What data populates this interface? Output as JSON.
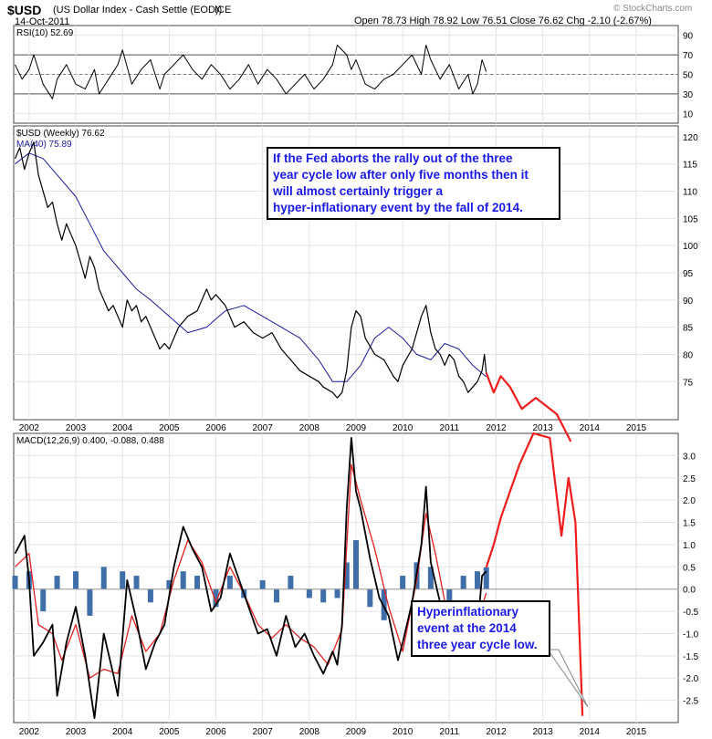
{
  "header": {
    "symbol": "$USD",
    "name": "(US Dollar Index - Cash Settle (EOD))",
    "exchange": "ICE",
    "date": "14-Oct-2011",
    "ohlc_label": "Open 78.73  High 78.92  Low 76.51  Close 76.62  Chg -2.10 (-2.67%)",
    "watermark": "© StockCharts.com",
    "colors": {
      "down": "#cc0000",
      "price_line": "#1a1a9e"
    }
  },
  "annotations": {
    "top": [
      "If the Fed aborts the rally out of the three",
      "year cycle low after only five months then it",
      "will almost certainly trigger a",
      "hyper-inflationary event by the fall of 2014."
    ],
    "bottom": [
      "Hyperinflationary",
      "event at the 2014",
      "three year cycle low."
    ]
  },
  "chart_data": [
    {
      "type": "line",
      "panel": "RSI",
      "legend": "RSI(10) 52.69",
      "ylim": [
        0,
        100
      ],
      "y_ticks": [
        10,
        30,
        50,
        70,
        90
      ],
      "reference_lines": [
        30,
        70
      ],
      "last_value": 52.69,
      "color": "#000000",
      "series": [
        {
          "x": [
            2001.7,
            2001.85,
            2002.0,
            2002.1,
            2002.3,
            2002.5,
            2002.6,
            2002.8,
            2003.0,
            2003.2,
            2003.4,
            2003.5,
            2003.7,
            2003.9,
            2004.0,
            2004.2,
            2004.4,
            2004.6,
            2004.8,
            2004.9,
            2005.1,
            2005.3,
            2005.5,
            2005.7,
            2005.9,
            2006.1,
            2006.3,
            2006.5,
            2006.7,
            2006.9,
            2007.1,
            2007.3,
            2007.5,
            2007.7,
            2007.9,
            2008.1,
            2008.3,
            2008.5,
            2008.6,
            2008.8,
            2008.9,
            2009.0,
            2009.2,
            2009.4,
            2009.6,
            2009.8,
            2010.0,
            2010.2,
            2010.4,
            2010.5,
            2010.6,
            2010.8,
            2011.0,
            2011.2,
            2011.4,
            2011.5,
            2011.6,
            2011.7,
            2011.79
          ],
          "values": [
            60,
            45,
            55,
            70,
            40,
            25,
            45,
            60,
            40,
            35,
            55,
            30,
            45,
            60,
            75,
            40,
            55,
            65,
            35,
            50,
            60,
            70,
            55,
            45,
            60,
            50,
            35,
            45,
            60,
            40,
            55,
            45,
            30,
            40,
            50,
            35,
            45,
            60,
            80,
            70,
            55,
            65,
            40,
            35,
            45,
            50,
            60,
            70,
            50,
            80,
            65,
            45,
            60,
            35,
            50,
            30,
            40,
            65,
            52.69
          ]
        }
      ]
    },
    {
      "type": "line",
      "panel": "Price",
      "legend": "$USD (Weekly) 76.62",
      "ma_legend": "MA(40) 75.89",
      "ylim": [
        68,
        122
      ],
      "y_ticks": [
        75,
        80,
        85,
        90,
        95,
        100,
        105,
        110,
        115,
        120
      ],
      "x_tick_labels": [
        "2002",
        "2003",
        "2004",
        "2005",
        "2006",
        "2007",
        "2008",
        "2009",
        "2010",
        "2011",
        "2012",
        "2013",
        "2014",
        "2015"
      ],
      "series": [
        {
          "name": "$USD (Weekly)",
          "x": [
            2001.7,
            2001.8,
            2001.9,
            2002.0,
            2002.1,
            2002.2,
            2002.3,
            2002.4,
            2002.5,
            2002.6,
            2002.7,
            2002.8,
            2002.9,
            2003.0,
            2003.1,
            2003.2,
            2003.3,
            2003.4,
            2003.5,
            2003.6,
            2003.7,
            2003.8,
            2003.9,
            2004.0,
            2004.1,
            2004.2,
            2004.3,
            2004.4,
            2004.5,
            2004.6,
            2004.7,
            2004.8,
            2004.9,
            2005.0,
            2005.2,
            2005.4,
            2005.6,
            2005.8,
            2005.9,
            2006.0,
            2006.2,
            2006.3,
            2006.4,
            2006.6,
            2006.8,
            2007.0,
            2007.2,
            2007.4,
            2007.6,
            2007.8,
            2008.0,
            2008.2,
            2008.3,
            2008.5,
            2008.6,
            2008.7,
            2008.8,
            2008.9,
            2009.0,
            2009.1,
            2009.2,
            2009.4,
            2009.6,
            2009.8,
            2009.9,
            2010.0,
            2010.2,
            2010.3,
            2010.4,
            2010.5,
            2010.6,
            2010.7,
            2010.8,
            2010.9,
            2011.0,
            2011.1,
            2011.2,
            2011.3,
            2011.4,
            2011.5,
            2011.6,
            2011.7,
            2011.75,
            2011.79
          ],
          "values": [
            116,
            118,
            114,
            117,
            119,
            113,
            110,
            107,
            108,
            104,
            101,
            104,
            102,
            100,
            97,
            94,
            98,
            96,
            92,
            90,
            88,
            89,
            87,
            85,
            90,
            88,
            89,
            86,
            87,
            85,
            83,
            81,
            82,
            81,
            85,
            87,
            88,
            92,
            90,
            91,
            89,
            87,
            85,
            86,
            84,
            83,
            84,
            81,
            79,
            77,
            76,
            75,
            74,
            73,
            72,
            73,
            77,
            85,
            88,
            87,
            83,
            80,
            79,
            76,
            75,
            78,
            81,
            84,
            87,
            89,
            84,
            81,
            80,
            78,
            80,
            79,
            76,
            75,
            73,
            74,
            75,
            77,
            80,
            76.62
          ]
        },
        {
          "name": "MA(40)",
          "x": [
            2001.7,
            2002.0,
            2002.3,
            2002.6,
            2003.0,
            2003.3,
            2003.6,
            2004.0,
            2004.3,
            2004.6,
            2005.0,
            2005.4,
            2005.8,
            2006.2,
            2006.6,
            2007.0,
            2007.4,
            2007.8,
            2008.2,
            2008.5,
            2008.8,
            2009.1,
            2009.4,
            2009.7,
            2010.0,
            2010.3,
            2010.6,
            2010.9,
            2011.2,
            2011.5,
            2011.79
          ],
          "values": [
            115,
            117,
            116,
            113,
            109,
            104,
            99,
            95,
            92,
            90,
            87,
            84,
            85,
            88,
            89,
            87,
            85,
            83,
            79,
            75,
            75,
            78,
            83,
            85,
            83,
            80,
            79,
            82,
            81,
            78,
            75.89
          ]
        },
        {
          "name": "projection",
          "x": [
            2011.79,
            2011.95,
            2012.1,
            2012.3,
            2012.55,
            2012.85,
            2013.3,
            2013.6
          ],
          "values": [
            76.62,
            73,
            76,
            74,
            70,
            72,
            69,
            64
          ]
        }
      ]
    },
    {
      "type": "line",
      "panel": "MACD",
      "legend": "MACD(12,26,9) 0.400, -0.088, 0.488",
      "legend_values": [
        0.4,
        -0.088,
        0.488
      ],
      "ylim": [
        -3.0,
        3.5
      ],
      "y_ticks": [
        -2.5,
        -2.0,
        -1.5,
        -1.0,
        -0.5,
        0.0,
        0.5,
        1.0,
        1.5,
        2.0,
        2.5,
        3.0
      ],
      "x_tick_labels": [
        "2002",
        "2003",
        "2004",
        "2005",
        "2006",
        "2007",
        "2008",
        "2009",
        "2010",
        "2011",
        "2012",
        "2013",
        "2014",
        "2015"
      ],
      "series": [
        {
          "name": "MACD",
          "x": [
            2001.7,
            2001.9,
            2002.0,
            2002.1,
            2002.3,
            2002.5,
            2002.6,
            2002.8,
            2003.0,
            2003.2,
            2003.4,
            2003.6,
            2003.8,
            2003.9,
            2004.1,
            2004.3,
            2004.5,
            2004.7,
            2004.9,
            2005.1,
            2005.3,
            2005.5,
            2005.7,
            2005.9,
            2006.1,
            2006.3,
            2006.5,
            2006.7,
            2006.9,
            2007.1,
            2007.3,
            2007.5,
            2007.7,
            2007.9,
            2008.1,
            2008.3,
            2008.5,
            2008.6,
            2008.7,
            2008.8,
            2008.9,
            2009.0,
            2009.1,
            2009.3,
            2009.5,
            2009.7,
            2009.9,
            2010.0,
            2010.2,
            2010.4,
            2010.5,
            2010.6,
            2010.8,
            2011.0,
            2011.2,
            2011.4,
            2011.6,
            2011.7,
            2011.79
          ],
          "values": [
            0.8,
            1.2,
            0.2,
            -1.5,
            -1.2,
            -0.8,
            -2.4,
            -1.2,
            -0.4,
            -1.5,
            -2.9,
            -1.0,
            -1.9,
            -2.4,
            0.2,
            -0.7,
            -1.8,
            -1.2,
            -0.8,
            0.5,
            1.4,
            0.9,
            0.5,
            -0.5,
            -0.2,
            0.8,
            0.2,
            -0.4,
            -1.0,
            -0.9,
            -1.5,
            -0.6,
            -1.3,
            -1.0,
            -1.5,
            -1.9,
            -1.4,
            -1.7,
            -0.8,
            1.8,
            3.4,
            2.2,
            1.8,
            0.7,
            -0.2,
            -0.6,
            -1.6,
            -1.2,
            -0.3,
            1.0,
            2.3,
            0.6,
            -0.3,
            -1.1,
            -1.0,
            -0.5,
            -0.9,
            0.3,
            0.4
          ]
        },
        {
          "name": "Signal",
          "x": [
            2001.7,
            2002.0,
            2002.2,
            2002.5,
            2002.7,
            2003.0,
            2003.3,
            2003.6,
            2003.9,
            2004.2,
            2004.5,
            2004.8,
            2005.1,
            2005.4,
            2005.7,
            2006.0,
            2006.3,
            2006.6,
            2006.9,
            2007.2,
            2007.5,
            2007.8,
            2008.1,
            2008.4,
            2008.7,
            2008.9,
            2009.1,
            2009.4,
            2009.7,
            2010.0,
            2010.3,
            2010.5,
            2010.7,
            2011.0,
            2011.3,
            2011.6,
            2011.79
          ],
          "values": [
            0.5,
            0.8,
            -0.8,
            -1.0,
            -1.6,
            -0.8,
            -2.0,
            -1.8,
            -1.9,
            -0.6,
            -1.4,
            -1.0,
            0.2,
            1.1,
            0.6,
            -0.3,
            0.5,
            -0.1,
            -0.8,
            -1.1,
            -0.8,
            -1.1,
            -1.3,
            -1.7,
            -0.9,
            2.8,
            2.0,
            0.9,
            -0.4,
            -1.4,
            0.2,
            1.7,
            0.8,
            -0.8,
            -0.9,
            -0.7,
            -0.088
          ]
        },
        {
          "name": "Histogram",
          "x": [
            2001.7,
            2002.0,
            2002.3,
            2002.6,
            2003.0,
            2003.3,
            2003.6,
            2004.0,
            2004.3,
            2004.6,
            2005.0,
            2005.3,
            2005.6,
            2006.0,
            2006.3,
            2006.6,
            2007.0,
            2007.3,
            2007.6,
            2008.0,
            2008.3,
            2008.6,
            2008.8,
            2009.0,
            2009.3,
            2009.6,
            2010.0,
            2010.3,
            2010.6,
            2011.0,
            2011.3,
            2011.6,
            2011.79
          ],
          "values": [
            0.3,
            0.4,
            -0.5,
            0.3,
            0.4,
            -0.6,
            0.5,
            0.4,
            0.3,
            -0.3,
            0.2,
            0.4,
            0.3,
            -0.4,
            0.3,
            -0.2,
            0.2,
            -0.3,
            0.3,
            -0.2,
            -0.3,
            -0.2,
            0.6,
            1.1,
            -0.4,
            -0.7,
            0.3,
            0.6,
            0.5,
            -0.3,
            0.3,
            0.4,
            0.488
          ]
        },
        {
          "name": "projection",
          "x": [
            2011.79,
            2011.95,
            2012.1,
            2012.3,
            2012.5,
            2012.8,
            2013.15,
            2013.4,
            2013.55,
            2013.7,
            2013.85
          ],
          "values": [
            0.488,
            1.0,
            1.6,
            2.2,
            2.8,
            3.5,
            3.4,
            1.2,
            2.5,
            1.5,
            -2.85
          ]
        }
      ]
    }
  ]
}
